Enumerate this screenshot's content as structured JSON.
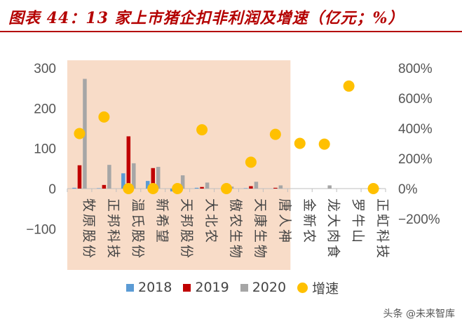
{
  "title": "图表 44：13 家上市猪企扣非利润及增速（亿元；%）",
  "watermark": "头条 @未来智库",
  "colors": {
    "title": "#b40000",
    "s2018": "#5b9bd5",
    "s2019": "#c00000",
    "s2020": "#a6a6a6",
    "growth": "#ffc000",
    "highlight": "#f8dcc8"
  },
  "chart_data": {
    "type": "bar",
    "title": "13 家上市猪企扣非利润及增速（亿元；%）",
    "categories": [
      "牧原股份",
      "正邦科技",
      "温氏股份",
      "新希望",
      "天邦股份",
      "大北农",
      "傲农生物",
      "天康生物",
      "唐人神",
      "金新农",
      "龙大肉食",
      "罗牛山",
      "正虹科技"
    ],
    "highlighted_categories": [
      "牧原股份",
      "正邦科技",
      "温氏股份",
      "新希望",
      "天邦股份",
      "大北农",
      "傲农生物",
      "天康生物",
      "唐人神"
    ],
    "series": [
      {
        "name": "2018",
        "axis": "left",
        "values": [
          2,
          1,
          38,
          19,
          -7,
          2,
          0,
          1,
          0,
          0,
          0,
          0,
          0
        ]
      },
      {
        "name": "2019",
        "axis": "left",
        "values": [
          58,
          9,
          130,
          51,
          0,
          4,
          0,
          6,
          2,
          0,
          0,
          0,
          0
        ]
      },
      {
        "name": "2020",
        "axis": "left",
        "values": [
          273,
          59,
          63,
          54,
          33,
          15,
          5,
          17,
          8,
          0,
          8,
          0,
          1
        ]
      },
      {
        "name": "增速",
        "axis": "right",
        "type": "scatter",
        "values": [
          365,
          475,
          0,
          0,
          0,
          390,
          0,
          175,
          360,
          300,
          295,
          680,
          0
        ]
      }
    ],
    "left_axis": {
      "min": -100,
      "max": 300,
      "ticks": [
        -100,
        0,
        100,
        200,
        300
      ],
      "labels": [
        "−100",
        "0",
        "100",
        "200",
        "300"
      ]
    },
    "right_axis": {
      "min": -200,
      "max": 800,
      "ticks": [
        -200,
        0,
        200,
        400,
        600,
        800
      ],
      "labels": [
        "−200%",
        "0%",
        "200%",
        "400%",
        "600%",
        "800%"
      ]
    },
    "legend": [
      "2018",
      "2019",
      "2020",
      "增速"
    ],
    "legend_position": "bottom"
  }
}
